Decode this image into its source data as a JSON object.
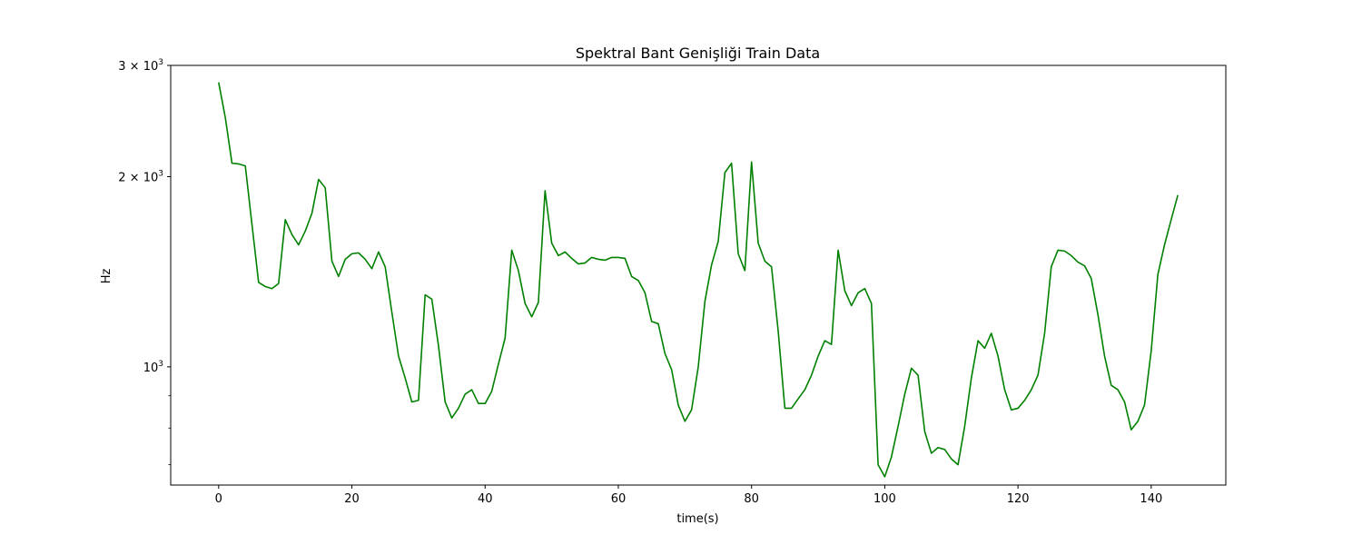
{
  "chart_data": {
    "type": "line",
    "title": "Spektral Bant Genişliği Train Data",
    "xlabel": "time(s)",
    "ylabel": "Hz",
    "yscale": "log",
    "xlim": [
      -7.2,
      151.2
    ],
    "ylim": [
      650,
      3000
    ],
    "grid": false,
    "legend": "none",
    "color": "#008000",
    "x_ticks": [
      0,
      20,
      40,
      60,
      80,
      100,
      120,
      140
    ],
    "x_tick_labels": [
      "0",
      "20",
      "40",
      "60",
      "80",
      "100",
      "120",
      "140"
    ],
    "y_major_ticks": [
      {
        "value": 1000,
        "base": "10",
        "exp": "3",
        "coef": ""
      },
      {
        "value": 2000,
        "base": "10",
        "exp": "3",
        "coef": "2 × "
      },
      {
        "value": 3000,
        "base": "10",
        "exp": "3",
        "coef": "3 × "
      }
    ],
    "y_minor_ticks": [
      700,
      800,
      900
    ],
    "series": [
      {
        "x": [
          0,
          1,
          2,
          3,
          4,
          5,
          6,
          7,
          8,
          9,
          10,
          11,
          12,
          13,
          14,
          15,
          16,
          17,
          18,
          19,
          20,
          21,
          22,
          23,
          24,
          25,
          26,
          27,
          28,
          29,
          30,
          31,
          32,
          33,
          34,
          35,
          36,
          37,
          38,
          39,
          40,
          41,
          42,
          43,
          44,
          45,
          46,
          47,
          48,
          49,
          50,
          51,
          52,
          53,
          54,
          55,
          56,
          57,
          58,
          59,
          60,
          61,
          62,
          63,
          64,
          65,
          66,
          67,
          68,
          69,
          70,
          71,
          72,
          73,
          74,
          75,
          76,
          77,
          78,
          79,
          80,
          81,
          82,
          83,
          84,
          85,
          86,
          87,
          88,
          89,
          90,
          91,
          92,
          93,
          94,
          95,
          96,
          97,
          98,
          99,
          100,
          101,
          102,
          103,
          104,
          105,
          106,
          107,
          108,
          109,
          110,
          111,
          112,
          113,
          114,
          115,
          116,
          117,
          118,
          119,
          120,
          121,
          122,
          123,
          124,
          125,
          126,
          127,
          128,
          129,
          130,
          131,
          132,
          133,
          134,
          135,
          136,
          137,
          138,
          139,
          140,
          141,
          142,
          143,
          144
        ],
        "values": [
          2820,
          2480,
          2100,
          2095,
          2080,
          1680,
          1360,
          1340,
          1330,
          1355,
          1710,
          1620,
          1560,
          1640,
          1750,
          1980,
          1920,
          1470,
          1390,
          1480,
          1510,
          1515,
          1480,
          1430,
          1520,
          1440,
          1220,
          1040,
          960,
          880,
          885,
          1300,
          1280,
          1080,
          880,
          830,
          860,
          905,
          920,
          875,
          875,
          915,
          1010,
          1110,
          1530,
          1420,
          1260,
          1200,
          1265,
          1900,
          1570,
          1500,
          1520,
          1485,
          1455,
          1460,
          1490,
          1480,
          1475,
          1490,
          1490,
          1485,
          1390,
          1370,
          1310,
          1180,
          1170,
          1050,
          990,
          870,
          820,
          855,
          1000,
          1270,
          1450,
          1580,
          2030,
          2100,
          1510,
          1420,
          2110,
          1570,
          1470,
          1440,
          1140,
          860,
          860,
          890,
          920,
          970,
          1040,
          1100,
          1085,
          1530,
          1320,
          1250,
          1310,
          1330,
          1260,
          700,
          670,
          720,
          805,
          905,
          995,
          970,
          790,
          730,
          745,
          740,
          715,
          700,
          805,
          960,
          1100,
          1070,
          1130,
          1040,
          920,
          855,
          860,
          885,
          920,
          970,
          1130,
          1440,
          1530,
          1525,
          1500,
          1465,
          1445,
          1380,
          1210,
          1040,
          935,
          920,
          880,
          795,
          820,
          870,
          1060,
          1400,
          1560,
          1710,
          1870
        ]
      }
    ]
  }
}
